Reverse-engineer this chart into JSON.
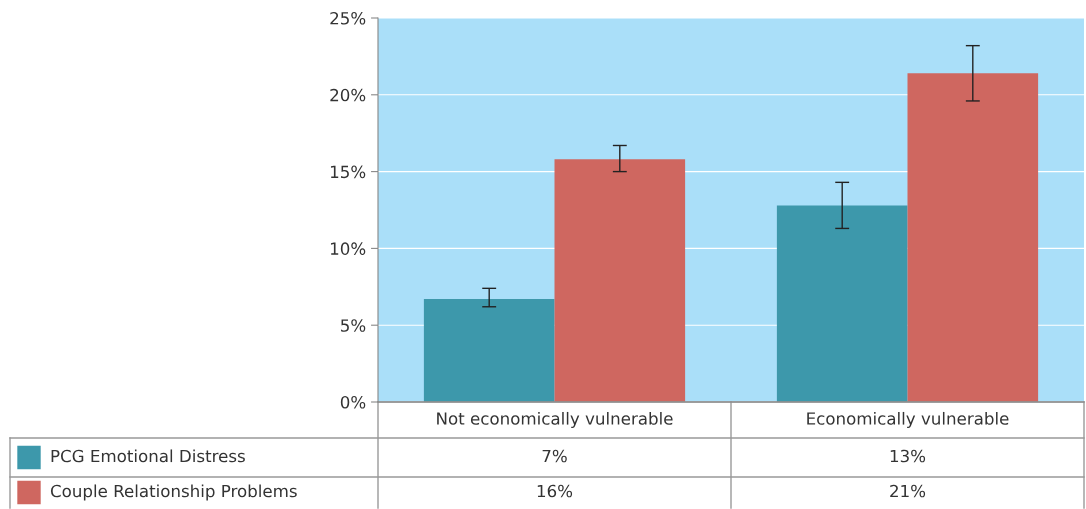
{
  "chart_data": {
    "type": "bar",
    "categories": [
      "Not economically vulnerable",
      "Economically vulnerable"
    ],
    "series": [
      {
        "name": "PCG Emotional Distress",
        "color": "#3d98ab",
        "values": [
          6.7,
          12.8
        ],
        "errors": [
          [
            6.2,
            7.4
          ],
          [
            11.3,
            14.3
          ]
        ],
        "value_labels": [
          "7%",
          "13%"
        ]
      },
      {
        "name": "Couple Relationship Problems",
        "color": "#cf6760",
        "values": [
          15.8,
          21.4
        ],
        "errors": [
          [
            15.0,
            16.7
          ],
          [
            19.6,
            23.2
          ]
        ],
        "value_labels": [
          "16%",
          "21%"
        ]
      }
    ],
    "ylim": [
      0,
      25
    ],
    "yticks": [
      {
        "value": 0,
        "label": "0%"
      },
      {
        "value": 5,
        "label": "5%"
      },
      {
        "value": 10,
        "label": "10%"
      },
      {
        "value": 15,
        "label": "15%"
      },
      {
        "value": 20,
        "label": "20%"
      },
      {
        "value": 25,
        "label": "25%"
      }
    ],
    "grid": "y",
    "legend": "bottom"
  }
}
